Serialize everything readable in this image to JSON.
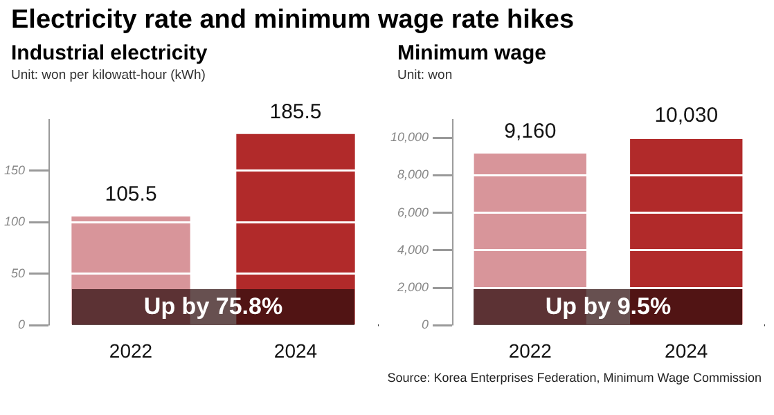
{
  "chart_data": [
    {
      "type": "bar",
      "title": "Electricity rate and minimum wage rate hikes",
      "subtitle": "Industrial electricity",
      "ylabel": "Unit: won per kilowatt-hour (kWh)",
      "categories": [
        "2022",
        "2024"
      ],
      "values": [
        105.5,
        185.5
      ],
      "colors": [
        "#d8959a",
        "#b12a2a"
      ],
      "value_labels": [
        "105.5",
        "185.5"
      ],
      "ylim": [
        0,
        200
      ],
      "yticks": [
        0,
        50,
        100,
        150
      ],
      "grid": "y",
      "legend": false,
      "annotations": [
        "Up by 75.8%"
      ]
    },
    {
      "type": "bar",
      "subtitle": "Minimum wage",
      "ylabel": "Unit: won",
      "categories": [
        "2022",
        "2024"
      ],
      "values": [
        9160,
        10030
      ],
      "colors": [
        "#d8959a",
        "#b12a2a"
      ],
      "value_labels": [
        "9,160",
        "10,030"
      ],
      "ylim": [
        0,
        11000
      ],
      "yticks": [
        0,
        {
          "value": 2000,
          "label": "2,000"
        },
        {
          "value": 4000,
          "label": "4,000"
        },
        {
          "value": 6000,
          "label": "6,000"
        },
        {
          "value": 8000,
          "label": "8,000"
        },
        {
          "value": 10000,
          "label": "10,000"
        }
      ],
      "grid": "y",
      "legend": false,
      "annotations": [
        "Up by 9.5%",
        "Source: Korea Enterprises Federation, Minimum Wage Commission"
      ]
    }
  ]
}
